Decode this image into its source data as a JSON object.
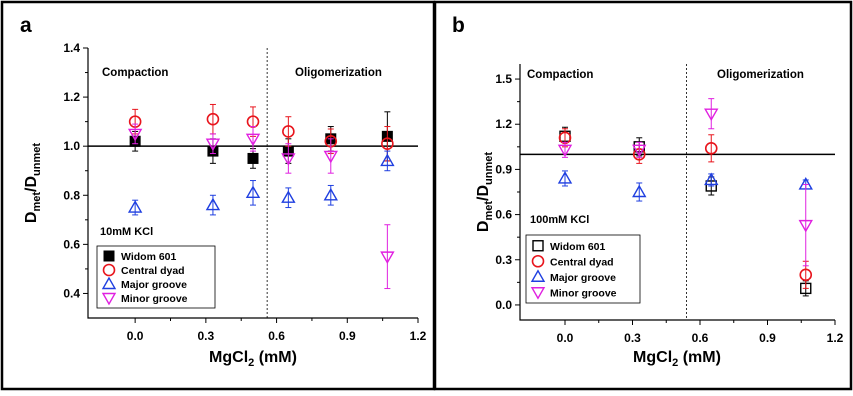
{
  "chart_data": [
    {
      "type": "scatter",
      "panel_label": "a",
      "xlabel_main": "MgCl",
      "xlabel_sub": "2",
      "xlabel_tail": " (mM)",
      "ylabel_main": "D",
      "ylabel_sub1": "met",
      "ylabel_mid": "/D",
      "ylabel_sub2": "unmet",
      "xlim": [
        -0.2,
        1.2
      ],
      "ylim": [
        0.3,
        1.4
      ],
      "xticks": [
        "0.0",
        "0.3",
        "0.6",
        "0.9",
        "1.2"
      ],
      "xtick_values": [
        0.0,
        0.3,
        0.6,
        0.9,
        1.2
      ],
      "yticks": [
        "0.4",
        "0.6",
        "0.8",
        "1.0",
        "1.2",
        "1.4"
      ],
      "ytick_values": [
        0.4,
        0.6,
        0.8,
        1.0,
        1.2,
        1.4
      ],
      "reference_y": 1.0,
      "divider_x": 0.56,
      "region_left": "Compaction",
      "region_right": "Oligomerization",
      "condition": "10mM KCl",
      "legend_position": "bottom-left",
      "series": [
        {
          "name": "Widom 601",
          "marker": "filled-square",
          "color": "#000000",
          "points": [
            {
              "x": 0.0,
              "y": 1.02,
              "err": 0.04
            },
            {
              "x": 0.33,
              "y": 0.98,
              "err": 0.05
            },
            {
              "x": 0.5,
              "y": 0.95,
              "err": 0.04
            },
            {
              "x": 0.65,
              "y": 0.98,
              "err": 0.05
            },
            {
              "x": 0.83,
              "y": 1.03,
              "err": 0.05
            },
            {
              "x": 1.07,
              "y": 1.04,
              "err": 0.1
            }
          ]
        },
        {
          "name": "Central dyad",
          "marker": "circle",
          "color": "#e8141c",
          "points": [
            {
              "x": 0.0,
              "y": 1.1,
              "err": 0.05
            },
            {
              "x": 0.33,
              "y": 1.11,
              "err": 0.06
            },
            {
              "x": 0.5,
              "y": 1.1,
              "err": 0.06
            },
            {
              "x": 0.65,
              "y": 1.06,
              "err": 0.06
            },
            {
              "x": 0.83,
              "y": 1.02,
              "err": 0.05
            },
            {
              "x": 1.07,
              "y": 1.01,
              "err": 0.07
            }
          ]
        },
        {
          "name": "Major groove",
          "marker": "triangle-up",
          "color": "#1f3fe0",
          "points": [
            {
              "x": 0.0,
              "y": 0.75,
              "err": 0.03
            },
            {
              "x": 0.33,
              "y": 0.76,
              "err": 0.04
            },
            {
              "x": 0.5,
              "y": 0.81,
              "err": 0.05
            },
            {
              "x": 0.65,
              "y": 0.79,
              "err": 0.04
            },
            {
              "x": 0.83,
              "y": 0.8,
              "err": 0.04
            },
            {
              "x": 1.07,
              "y": 0.94,
              "err": 0.04
            }
          ]
        },
        {
          "name": "Minor groove",
          "marker": "triangle-down",
          "color": "#e020e0",
          "points": [
            {
              "x": 0.0,
              "y": 1.05,
              "err": 0.04
            },
            {
              "x": 0.33,
              "y": 1.01,
              "err": 0.04
            },
            {
              "x": 0.5,
              "y": 1.03,
              "err": 0.05
            },
            {
              "x": 0.65,
              "y": 0.95,
              "err": 0.06
            },
            {
              "x": 0.83,
              "y": 0.96,
              "err": 0.07
            },
            {
              "x": 1.07,
              "y": 0.55,
              "err": 0.13
            }
          ]
        }
      ]
    },
    {
      "type": "scatter",
      "panel_label": "b",
      "xlabel_main": "MgCl",
      "xlabel_sub": "2",
      "xlabel_tail": " (mM)",
      "ylabel_main": "D",
      "ylabel_sub1": "met",
      "ylabel_mid": "/D",
      "ylabel_sub2": "unmet",
      "xlim": [
        -0.2,
        1.2
      ],
      "ylim": [
        -0.1,
        1.6
      ],
      "xticks": [
        "0.0",
        "0.3",
        "0.6",
        "0.9",
        "1.2"
      ],
      "xtick_values": [
        0.0,
        0.3,
        0.6,
        0.9,
        1.2
      ],
      "yticks": [
        "0.0",
        "0.3",
        "0.6",
        "0.9",
        "1.2",
        "1.5"
      ],
      "ytick_values": [
        0.0,
        0.3,
        0.6,
        0.9,
        1.2,
        1.5
      ],
      "reference_y": 1.0,
      "divider_x": 0.54,
      "region_left": "Compaction",
      "region_right": "Oligomerization",
      "condition": "100mM KCl",
      "legend_position": "bottom-left",
      "series": [
        {
          "name": "Widom 601",
          "marker": "open-square",
          "color": "#000000",
          "points": [
            {
              "x": 0.0,
              "y": 1.12,
              "err": 0.06
            },
            {
              "x": 0.33,
              "y": 1.05,
              "err": 0.06
            },
            {
              "x": 0.65,
              "y": 0.79,
              "err": 0.06
            },
            {
              "x": 1.07,
              "y": 0.11,
              "err": 0.05
            }
          ]
        },
        {
          "name": "Central dyad",
          "marker": "circle",
          "color": "#e8141c",
          "points": [
            {
              "x": 0.0,
              "y": 1.11,
              "err": 0.06
            },
            {
              "x": 0.33,
              "y": 1.0,
              "err": 0.06
            },
            {
              "x": 0.65,
              "y": 1.04,
              "err": 0.09
            },
            {
              "x": 1.07,
              "y": 0.2,
              "err": 0.09
            }
          ]
        },
        {
          "name": "Major groove",
          "marker": "triangle-up",
          "color": "#1f3fe0",
          "points": [
            {
              "x": 0.0,
              "y": 0.84,
              "err": 0.05
            },
            {
              "x": 0.33,
              "y": 0.75,
              "err": 0.06
            },
            {
              "x": 0.65,
              "y": 0.83,
              "err": 0.04
            },
            {
              "x": 1.07,
              "y": 0.8,
              "err": 0.03
            }
          ]
        },
        {
          "name": "Minor groove",
          "marker": "triangle-down",
          "color": "#e020e0",
          "points": [
            {
              "x": 0.0,
              "y": 1.03,
              "err": 0.05
            },
            {
              "x": 0.33,
              "y": 1.03,
              "err": 0.05
            },
            {
              "x": 0.65,
              "y": 1.27,
              "err": 0.1
            },
            {
              "x": 1.07,
              "y": 0.53,
              "err": 0.27
            }
          ]
        }
      ]
    }
  ]
}
